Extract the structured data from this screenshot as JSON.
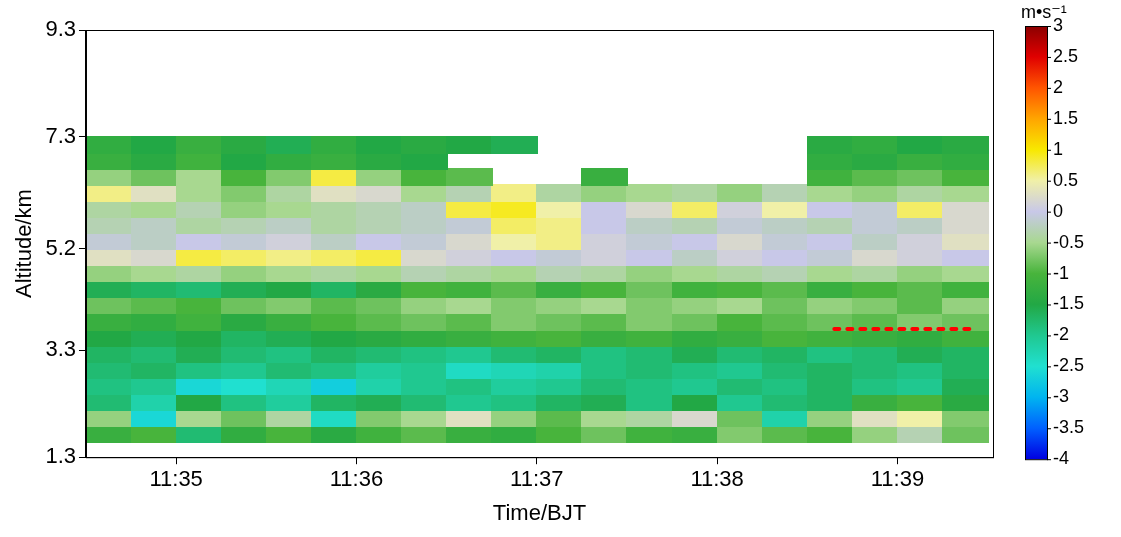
{
  "chart_data": {
    "type": "heatmap",
    "x_label": "Time/BJT",
    "y_label": "Altitude/km",
    "xlim": [
      694.5,
      699.53
    ],
    "xticks": [
      {
        "value": 695,
        "label": "11:35"
      },
      {
        "value": 696,
        "label": "11:36"
      },
      {
        "value": 697,
        "label": "11:37"
      },
      {
        "value": 698,
        "label": "11:38"
      },
      {
        "value": 699,
        "label": "11:39"
      }
    ],
    "ylim": [
      1.3,
      9.3
    ],
    "yticks": [
      1.3,
      3.3,
      5.2,
      7.3,
      9.3
    ],
    "grid": false,
    "x": [
      694.625,
      694.875,
      695.125,
      695.375,
      695.625,
      695.875,
      696.125,
      696.375,
      696.625,
      696.875,
      697.125,
      697.375,
      697.625,
      697.875,
      698.125,
      698.375,
      698.625,
      698.875,
      699.125,
      699.375
    ],
    "y": [
      1.75,
      2.05,
      2.35,
      2.65,
      2.95,
      3.25,
      3.55,
      3.85,
      4.15,
      4.45,
      4.75,
      5.05,
      5.35,
      5.65,
      5.95,
      6.25,
      6.55,
      6.85,
      7.15
    ],
    "z": [
      [
        -1.2,
        -1.0,
        -1.8,
        -1.3,
        -1.0,
        -1.4,
        -1.1,
        -0.9,
        -1.2,
        -1.3,
        -1.0,
        -0.8,
        -1.1,
        -1.2,
        -0.7,
        -0.9,
        -1.0,
        -0.6,
        -0.3,
        -0.8
      ],
      [
        -0.6,
        -2.6,
        -0.5,
        -0.8,
        -0.4,
        -2.4,
        -0.7,
        -0.5,
        0.3,
        -0.6,
        -0.9,
        -0.5,
        -0.4,
        0.2,
        -0.8,
        -2.2,
        -0.6,
        0.3,
        0.5,
        -0.7
      ],
      [
        -1.8,
        -2.2,
        -1.5,
        -1.9,
        -2.1,
        -1.7,
        -1.6,
        -1.8,
        -2.0,
        -1.9,
        -1.7,
        -1.6,
        -1.9,
        -1.5,
        -2.0,
        -1.8,
        -1.7,
        -1.2,
        -1.0,
        -1.4
      ],
      [
        -1.9,
        -2.0,
        -2.6,
        -2.5,
        -2.3,
        -2.7,
        -2.2,
        -2.0,
        -1.9,
        -2.1,
        -2.0,
        -1.8,
        -1.9,
        -2.0,
        -1.8,
        -1.9,
        -1.7,
        -1.9,
        -2.0,
        -1.6
      ],
      [
        -1.8,
        -1.7,
        -1.9,
        -2.0,
        -1.8,
        -1.9,
        -2.1,
        -2.0,
        -2.4,
        -2.3,
        -2.2,
        -1.9,
        -1.8,
        -1.9,
        -2.0,
        -1.8,
        -1.7,
        -1.8,
        -1.9,
        -1.7
      ],
      [
        -1.7,
        -1.8,
        -1.6,
        -1.8,
        -1.9,
        -1.7,
        -1.8,
        -1.9,
        -2.0,
        -1.8,
        -1.7,
        -1.9,
        -1.8,
        -1.6,
        -1.8,
        -1.7,
        -1.9,
        -1.8,
        -1.6,
        -1.7
      ],
      [
        -1.5,
        -1.6,
        -1.5,
        -1.7,
        -1.6,
        -1.5,
        -1.4,
        -1.3,
        -1.2,
        -1.1,
        -1.0,
        -1.2,
        -1.1,
        -1.3,
        -1.2,
        -1.0,
        -1.1,
        -1.2,
        -1.3,
        -1.1
      ],
      [
        -1.2,
        -1.3,
        -1.1,
        -1.4,
        -1.2,
        -1.0,
        -0.9,
        -0.8,
        -0.9,
        -0.7,
        -0.8,
        -0.9,
        -0.7,
        -0.8,
        -1.0,
        -0.9,
        -0.8,
        -0.9,
        -0.7,
        -0.8
      ],
      [
        -0.8,
        -0.9,
        -1.0,
        -0.8,
        -0.7,
        -0.9,
        -0.8,
        -0.6,
        -0.5,
        -0.7,
        -0.6,
        -0.5,
        -0.7,
        -0.6,
        -0.5,
        -0.8,
        -0.6,
        -0.7,
        -0.9,
        -0.6
      ],
      [
        -1.6,
        -1.7,
        -1.8,
        -1.6,
        -1.5,
        -1.7,
        -1.4,
        -1.0,
        -1.1,
        -0.9,
        -1.2,
        -1.0,
        -0.8,
        -1.1,
        -1.0,
        -0.9,
        -1.2,
        -1.0,
        -0.9,
        -1.1
      ],
      [
        -0.6,
        -0.5,
        -0.4,
        -0.6,
        -0.5,
        -0.4,
        -0.5,
        -0.3,
        -0.4,
        -0.5,
        -0.3,
        -0.4,
        -0.6,
        -0.5,
        -0.4,
        -0.3,
        -0.5,
        -0.4,
        -0.6,
        -0.5
      ],
      [
        0.3,
        0.2,
        0.8,
        0.7,
        0.6,
        0.7,
        0.8,
        0.2,
        0.1,
        0.0,
        -0.1,
        0.1,
        0.0,
        -0.2,
        0.1,
        0.0,
        -0.1,
        0.2,
        0.1,
        0.0
      ],
      [
        -0.1,
        -0.2,
        0.0,
        -0.1,
        0.1,
        -0.2,
        0.0,
        -0.1,
        0.2,
        0.5,
        0.6,
        0.1,
        -0.1,
        0.0,
        0.2,
        -0.1,
        0.0,
        -0.2,
        0.1,
        0.3
      ],
      [
        -0.3,
        -0.2,
        -0.4,
        -0.3,
        -0.2,
        -0.4,
        -0.3,
        -0.2,
        -0.1,
        0.7,
        0.6,
        0.0,
        -0.2,
        -0.3,
        -0.1,
        -0.2,
        -0.3,
        -0.1,
        -0.2,
        0.2
      ],
      [
        -0.4,
        -0.5,
        -0.3,
        -0.6,
        -0.5,
        -0.4,
        -0.3,
        -0.2,
        0.8,
        0.9,
        0.5,
        0.0,
        0.2,
        0.7,
        0.1,
        0.5,
        0.0,
        -0.1,
        0.7,
        0.2
      ],
      [
        0.6,
        0.3,
        -0.5,
        -0.7,
        -0.4,
        0.3,
        0.2,
        -0.5,
        -0.3,
        0.6,
        -0.4,
        -0.6,
        -0.5,
        -0.4,
        -0.6,
        -0.3,
        -0.5,
        -0.6,
        -0.4,
        -0.5
      ],
      [
        -0.6,
        -0.8,
        -0.5,
        -1.0,
        -0.7,
        0.8,
        -0.6,
        -1.0,
        -0.9,
        null,
        null,
        -1.2,
        null,
        null,
        null,
        null,
        -1.1,
        -0.9,
        -0.8,
        -1.0
      ],
      [
        -1.2,
        -1.4,
        -1.1,
        -1.5,
        -1.3,
        -1.2,
        -1.4,
        -1.5,
        null,
        null,
        null,
        null,
        null,
        null,
        null,
        null,
        -1.3,
        -1.4,
        -1.2,
        -1.3
      ],
      [
        -1.3,
        -1.5,
        -1.2,
        -1.4,
        -1.6,
        -1.3,
        -1.5,
        -1.4,
        -1.5,
        -1.6,
        null,
        null,
        null,
        null,
        null,
        null,
        -1.4,
        -1.3,
        -1.5,
        -1.4
      ]
    ],
    "colorbar": {
      "title": "m•s⁻¹",
      "range": [
        -4,
        3
      ],
      "ticks": [
        -4,
        -3.5,
        -3,
        -2.5,
        -2,
        -1.5,
        -1,
        -0.5,
        0,
        0.5,
        1,
        1.5,
        2,
        2.5,
        3
      ]
    },
    "series": [
      {
        "type": "line",
        "color": "#ff0000",
        "line_style": "dotted",
        "x": [
          698.65,
          699.4
        ],
        "y": [
          3.7,
          3.7
        ]
      }
    ]
  }
}
